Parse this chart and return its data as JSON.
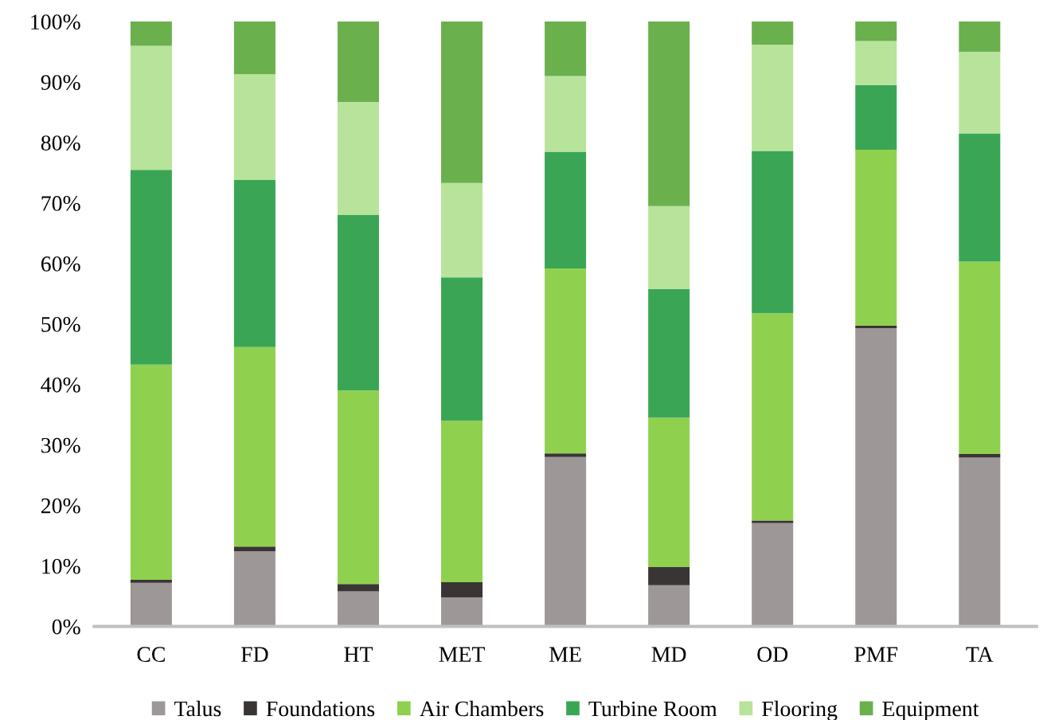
{
  "chart_data": {
    "type": "bar",
    "stacked": true,
    "categories": [
      "CC",
      "FD",
      "HT",
      "MET",
      "ME",
      "MD",
      "OD",
      "PMF",
      "TA"
    ],
    "series": [
      {
        "name": "Talus",
        "color": "#9e9797",
        "values": [
          7.2,
          12.4,
          5.8,
          4.8,
          28.0,
          6.8,
          17.1,
          49.3,
          27.9
        ]
      },
      {
        "name": "Foundations",
        "color": "#3a3535",
        "values": [
          0.5,
          0.8,
          1.2,
          2.5,
          0.6,
          3.0,
          0.4,
          0.4,
          0.6
        ]
      },
      {
        "name": "Air Chambers",
        "color": "#8fd14f",
        "values": [
          35.6,
          33.0,
          32.0,
          26.7,
          30.6,
          24.7,
          34.3,
          29.1,
          31.8
        ]
      },
      {
        "name": "Turbine Room",
        "color": "#3aa655",
        "values": [
          32.2,
          27.6,
          29.0,
          23.7,
          19.3,
          21.3,
          26.8,
          10.7,
          21.2
        ]
      },
      {
        "name": "Flooring",
        "color": "#b8e39a",
        "values": [
          20.5,
          17.5,
          18.7,
          15.6,
          12.5,
          13.7,
          17.6,
          7.3,
          13.5
        ]
      },
      {
        "name": "Equipment",
        "color": "#6ab04c",
        "values": [
          4.0,
          8.7,
          13.3,
          26.7,
          9.0,
          30.5,
          3.8,
          3.2,
          5.0
        ]
      }
    ],
    "ylim": [
      0,
      100
    ],
    "yticks": [
      {
        "value": 0,
        "label": "0%"
      },
      {
        "value": 10,
        "label": "10%"
      },
      {
        "value": 20,
        "label": "20%"
      },
      {
        "value": 30,
        "label": "30%"
      },
      {
        "value": 40,
        "label": "40%"
      },
      {
        "value": 50,
        "label": "50%"
      },
      {
        "value": 60,
        "label": "60%"
      },
      {
        "value": 70,
        "label": "70%"
      },
      {
        "value": 80,
        "label": "80%"
      },
      {
        "value": 90,
        "label": "90%"
      },
      {
        "value": 100,
        "label": "100%"
      }
    ],
    "grid": false,
    "legend": "bottom"
  }
}
